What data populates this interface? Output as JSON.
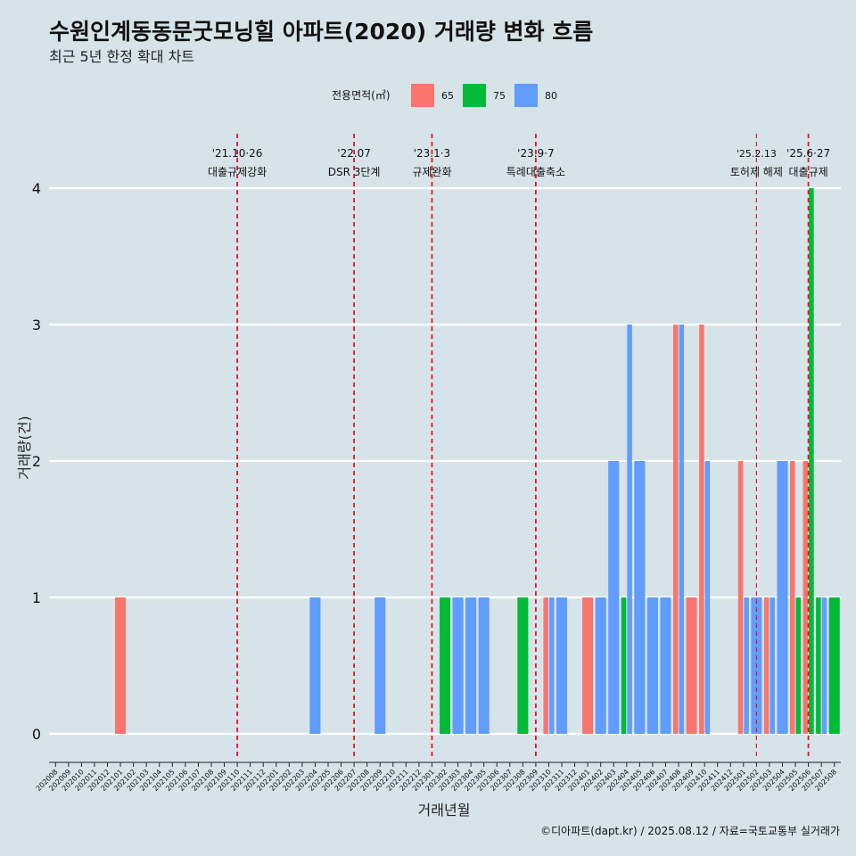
{
  "title": "수원인계동동문굿모닝힐 아파트(2020) 거래량 변화 흐름",
  "subtitle": "최근 5년 한정 확대 차트",
  "caption": "©디아파트(dapt.kr) / 2025.08.12 / 자료=국토교통부 실거래가",
  "legend": {
    "title": "전용면적(㎡)",
    "items": [
      {
        "label": "65",
        "color": "#f8766d"
      },
      {
        "label": "75",
        "color": "#00ba38"
      },
      {
        "label": "80",
        "color": "#619cff"
      }
    ]
  },
  "chart_data": {
    "type": "bar",
    "xlabel": "거래년월",
    "ylabel": "거래량(건)",
    "ylim": [
      0,
      4
    ],
    "y_ticks": [
      0,
      1,
      2,
      3,
      4
    ],
    "grid": "horizontal",
    "legend_position": "top",
    "categories": [
      "202008",
      "202009",
      "202010",
      "202011",
      "202012",
      "202101",
      "202102",
      "202103",
      "202104",
      "202105",
      "202106",
      "202107",
      "202108",
      "202109",
      "202110",
      "202111",
      "202112",
      "202201",
      "202202",
      "202203",
      "202204",
      "202205",
      "202206",
      "202207",
      "202208",
      "202209",
      "202210",
      "202211",
      "202212",
      "202301",
      "202302",
      "202303",
      "202304",
      "202305",
      "202306",
      "202307",
      "202308",
      "202309",
      "202310",
      "202311",
      "202312",
      "202401",
      "202402",
      "202403",
      "202404",
      "202405",
      "202406",
      "202407",
      "202408",
      "202409",
      "202410",
      "202411",
      "202412",
      "202501",
      "202502",
      "202503",
      "202504",
      "202505",
      "202506",
      "202507",
      "202508"
    ],
    "series": [
      {
        "name": "65",
        "color": "#f8766d",
        "values": [
          0,
          0,
          0,
          0,
          0,
          1,
          0,
          0,
          0,
          0,
          0,
          0,
          0,
          0,
          0,
          0,
          0,
          0,
          0,
          0,
          0,
          0,
          0,
          0,
          0,
          0,
          0,
          0,
          0,
          0,
          0,
          0,
          0,
          0,
          0,
          0,
          0,
          0,
          1,
          0,
          0,
          1,
          0,
          0,
          0,
          0,
          0,
          0,
          3,
          1,
          3,
          0,
          0,
          2,
          0,
          1,
          0,
          2,
          2,
          0,
          0
        ]
      },
      {
        "name": "75",
        "color": "#00ba38",
        "values": [
          0,
          0,
          0,
          0,
          0,
          0,
          0,
          0,
          0,
          0,
          0,
          0,
          0,
          0,
          0,
          0,
          0,
          0,
          0,
          0,
          0,
          0,
          0,
          0,
          0,
          0,
          0,
          0,
          0,
          0,
          1,
          0,
          0,
          0,
          0,
          0,
          1,
          0,
          0,
          0,
          0,
          0,
          0,
          0,
          1,
          0,
          0,
          0,
          0,
          0,
          0,
          0,
          0,
          0,
          0,
          0,
          0,
          1,
          4,
          1,
          1
        ]
      },
      {
        "name": "80",
        "color": "#619cff",
        "values": [
          0,
          0,
          0,
          0,
          0,
          0,
          0,
          0,
          0,
          0,
          0,
          0,
          0,
          0,
          0,
          0,
          0,
          0,
          0,
          0,
          1,
          0,
          0,
          0,
          0,
          1,
          0,
          0,
          0,
          0,
          0,
          1,
          1,
          1,
          0,
          0,
          0,
          0,
          1,
          1,
          0,
          0,
          1,
          2,
          3,
          2,
          1,
          1,
          3,
          0,
          2,
          0,
          0,
          1,
          1,
          1,
          2,
          0,
          0,
          1,
          0
        ]
      }
    ],
    "annotations": [
      {
        "x": "202110",
        "date": "'21.10·26",
        "label": "대출규제강화"
      },
      {
        "x": "202207",
        "date": "'22.07",
        "label": "DSR 3단계"
      },
      {
        "x": "202301",
        "date": "'23.1·3",
        "label": "규제완화"
      },
      {
        "x": "202309",
        "date": "'23.9·7",
        "label": "특례대출축소"
      },
      {
        "x": "202502",
        "date": "'25.2.13",
        "label": "토허제 해제",
        "style": "thin"
      },
      {
        "x": "202506",
        "date": "'25.6·27",
        "label": "대출규제"
      }
    ]
  }
}
